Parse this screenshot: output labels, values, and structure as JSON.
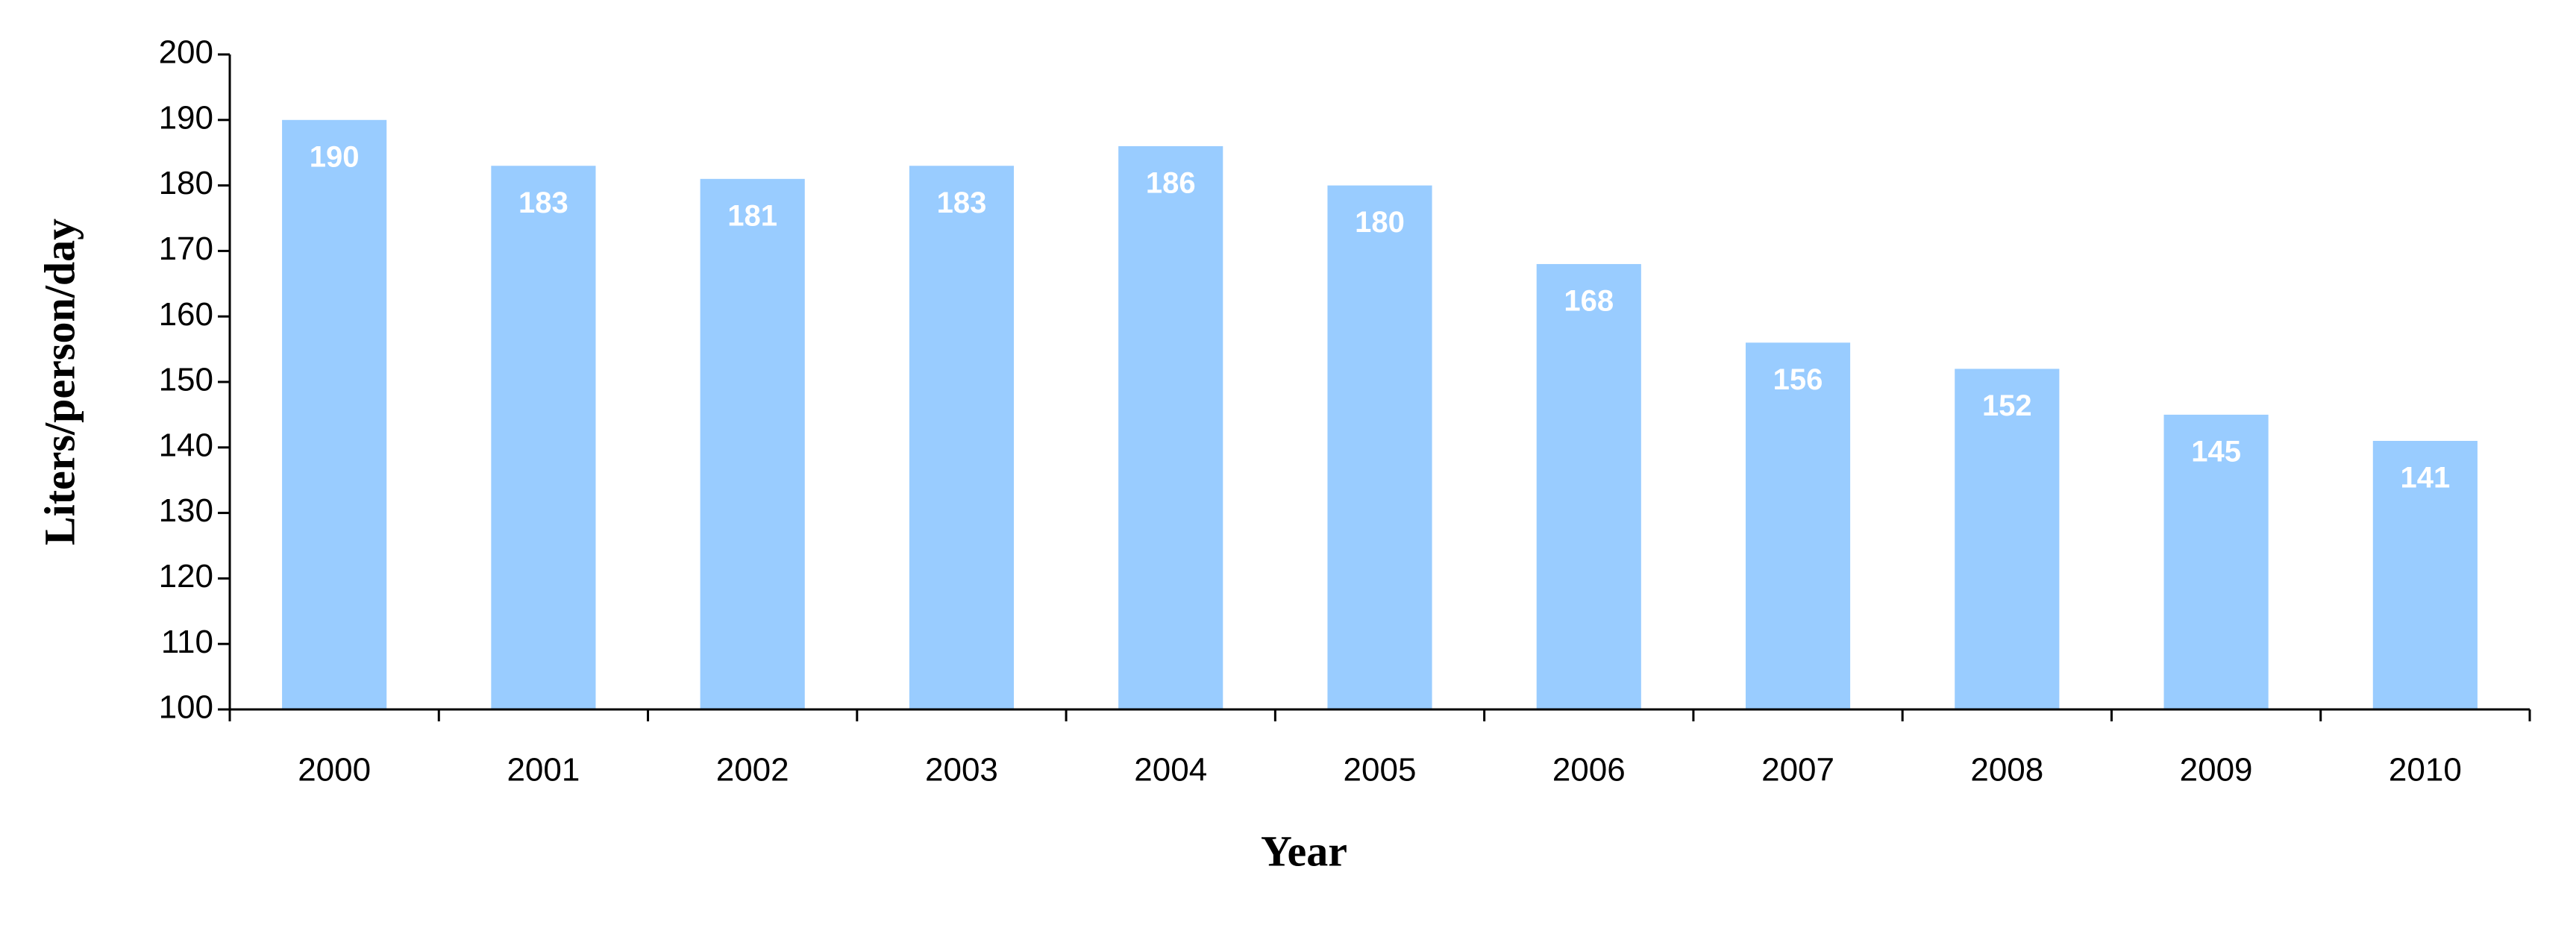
{
  "chart_data": {
    "type": "bar",
    "x_label": "Year",
    "y_label": "Liters/person/day",
    "categories": [
      "2000",
      "2001",
      "2002",
      "2003",
      "2004",
      "2005",
      "2006",
      "2007",
      "2008",
      "2009",
      "2010"
    ],
    "values": [
      190,
      183,
      181,
      183,
      186,
      180,
      168,
      156,
      152,
      145,
      141
    ],
    "color": "#99ccff",
    "ylim": [
      100,
      200
    ],
    "yticks": [
      100,
      110,
      120,
      130,
      140,
      150,
      160,
      170,
      180,
      190,
      200
    ],
    "grid": false
  }
}
